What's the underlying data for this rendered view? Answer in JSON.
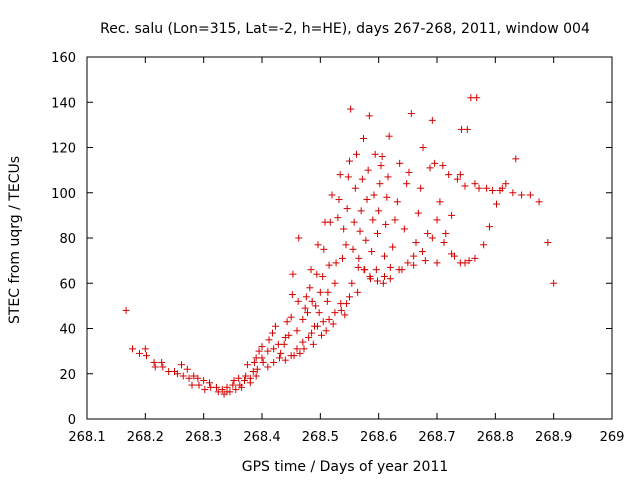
{
  "chart_data": {
    "type": "scatter",
    "title": "Rec. salu (Lon=315, Lat=-2, h=HE), days 267-268, 2011, window 004",
    "xlabel": "GPS time / Days of year 2011",
    "ylabel": "STEC from uqrg / TECUs",
    "xlim": [
      268.1,
      269.0
    ],
    "ylim": [
      0,
      160
    ],
    "xticks": [
      "268.1",
      "268.2",
      "268.3",
      "268.4",
      "268.5",
      "268.6",
      "268.7",
      "268.8",
      "268.9",
      "269"
    ],
    "yticks": [
      "0",
      "20",
      "40",
      "60",
      "80",
      "100",
      "120",
      "140",
      "160"
    ],
    "marker": "+",
    "color": "#d40000",
    "grid": false,
    "series": [
      {
        "name": "STEC",
        "points": [
          [
            268.167,
            48
          ],
          [
            268.178,
            31
          ],
          [
            268.19,
            29
          ],
          [
            268.2,
            31
          ],
          [
            268.202,
            28
          ],
          [
            268.215,
            25
          ],
          [
            268.217,
            23
          ],
          [
            268.228,
            25
          ],
          [
            268.23,
            23
          ],
          [
            268.24,
            21
          ],
          [
            268.25,
            21
          ],
          [
            268.255,
            20
          ],
          [
            268.262,
            24
          ],
          [
            268.265,
            19
          ],
          [
            268.272,
            22
          ],
          [
            268.275,
            18
          ],
          [
            268.28,
            15
          ],
          [
            268.283,
            19
          ],
          [
            268.29,
            18
          ],
          [
            268.292,
            15
          ],
          [
            268.3,
            17
          ],
          [
            268.302,
            13
          ],
          [
            268.31,
            16
          ],
          [
            268.312,
            14
          ],
          [
            268.322,
            14
          ],
          [
            268.325,
            12
          ],
          [
            268.332,
            13
          ],
          [
            268.335,
            11
          ],
          [
            268.34,
            14
          ],
          [
            268.345,
            12
          ],
          [
            268.35,
            15
          ],
          [
            268.352,
            17
          ],
          [
            268.36,
            18
          ],
          [
            268.362,
            15
          ],
          [
            268.37,
            17
          ],
          [
            268.372,
            19
          ],
          [
            268.375,
            24
          ],
          [
            268.38,
            18
          ],
          [
            268.385,
            21
          ],
          [
            268.387,
            25
          ],
          [
            268.39,
            27
          ],
          [
            268.392,
            22
          ],
          [
            268.395,
            30
          ],
          [
            268.4,
            32
          ],
          [
            268.4,
            27
          ],
          [
            268.402,
            25
          ],
          [
            268.41,
            30
          ],
          [
            268.412,
            35
          ],
          [
            268.418,
            38
          ],
          [
            268.42,
            31
          ],
          [
            268.423,
            41
          ],
          [
            268.428,
            33
          ],
          [
            268.432,
            29
          ],
          [
            268.438,
            33
          ],
          [
            268.44,
            36
          ],
          [
            268.443,
            43
          ],
          [
            268.446,
            37
          ],
          [
            268.45,
            45
          ],
          [
            268.452,
            55
          ],
          [
            268.453,
            64
          ],
          [
            268.455,
            28
          ],
          [
            268.46,
            39
          ],
          [
            268.462,
            52
          ],
          [
            268.463,
            80
          ],
          [
            268.465,
            29
          ],
          [
            268.47,
            44
          ],
          [
            268.472,
            31
          ],
          [
            268.474,
            49
          ],
          [
            268.476,
            54
          ],
          [
            268.478,
            47
          ],
          [
            268.48,
            36
          ],
          [
            268.482,
            58
          ],
          [
            268.484,
            66
          ],
          [
            268.486,
            52
          ],
          [
            268.488,
            33
          ],
          [
            268.49,
            41
          ],
          [
            268.492,
            50
          ],
          [
            268.494,
            64
          ],
          [
            268.496,
            77
          ],
          [
            268.498,
            47
          ],
          [
            268.5,
            56
          ],
          [
            268.502,
            37
          ],
          [
            268.504,
            63
          ],
          [
            268.506,
            75
          ],
          [
            268.508,
            87
          ],
          [
            268.51,
            39
          ],
          [
            268.512,
            52
          ],
          [
            268.513,
            56
          ],
          [
            268.515,
            68
          ],
          [
            268.517,
            87
          ],
          [
            268.52,
            99
          ],
          [
            268.522,
            42
          ],
          [
            268.525,
            60
          ],
          [
            268.527,
            69
          ],
          [
            268.53,
            89
          ],
          [
            268.532,
            97
          ],
          [
            268.534,
            108
          ],
          [
            268.536,
            48
          ],
          [
            268.538,
            71
          ],
          [
            268.54,
            84
          ],
          [
            268.542,
            46
          ],
          [
            268.544,
            77
          ],
          [
            268.546,
            93
          ],
          [
            268.548,
            107
          ],
          [
            268.55,
            114
          ],
          [
            268.552,
            137
          ],
          [
            268.554,
            60
          ],
          [
            268.556,
            75
          ],
          [
            268.558,
            87
          ],
          [
            268.56,
            102
          ],
          [
            268.562,
            117
          ],
          [
            268.564,
            56
          ],
          [
            268.566,
            71
          ],
          [
            268.568,
            83
          ],
          [
            268.57,
            92
          ],
          [
            268.572,
            106
          ],
          [
            268.574,
            124
          ],
          [
            268.576,
            66
          ],
          [
            268.578,
            79
          ],
          [
            268.58,
            97
          ],
          [
            268.582,
            110
          ],
          [
            268.584,
            134
          ],
          [
            268.586,
            62
          ],
          [
            268.588,
            74
          ],
          [
            268.59,
            88
          ],
          [
            268.592,
            99
          ],
          [
            268.594,
            117
          ],
          [
            268.596,
            66
          ],
          [
            268.598,
            82
          ],
          [
            268.6,
            92
          ],
          [
            268.602,
            104
          ],
          [
            268.604,
            112
          ],
          [
            268.606,
            116
          ],
          [
            268.608,
            60
          ],
          [
            268.61,
            72
          ],
          [
            268.612,
            86
          ],
          [
            268.614,
            98
          ],
          [
            268.616,
            107
          ],
          [
            268.618,
            125
          ],
          [
            268.62,
            62
          ],
          [
            268.624,
            76
          ],
          [
            268.628,
            88
          ],
          [
            268.632,
            96
          ],
          [
            268.636,
            113
          ],
          [
            268.64,
            66
          ],
          [
            268.644,
            84
          ],
          [
            268.648,
            104
          ],
          [
            268.652,
            109
          ],
          [
            268.656,
            135
          ],
          [
            268.66,
            68
          ],
          [
            268.664,
            78
          ],
          [
            268.668,
            91
          ],
          [
            268.672,
            102
          ],
          [
            268.676,
            120
          ],
          [
            268.68,
            70
          ],
          [
            268.684,
            82
          ],
          [
            268.688,
            111
          ],
          [
            268.692,
            132
          ],
          [
            268.696,
            113
          ],
          [
            268.7,
            88
          ],
          [
            268.705,
            96
          ],
          [
            268.71,
            112
          ],
          [
            268.715,
            82
          ],
          [
            268.72,
            108
          ],
          [
            268.725,
            90
          ],
          [
            268.73,
            72
          ],
          [
            268.735,
            106
          ],
          [
            268.74,
            108
          ],
          [
            268.742,
            128
          ],
          [
            268.748,
            103
          ],
          [
            268.752,
            128
          ],
          [
            268.755,
            70
          ],
          [
            268.758,
            142
          ],
          [
            268.765,
            104
          ],
          [
            268.768,
            142
          ],
          [
            268.772,
            102
          ],
          [
            268.78,
            77
          ],
          [
            268.785,
            102
          ],
          [
            268.79,
            85
          ],
          [
            268.795,
            101
          ],
          [
            268.802,
            95
          ],
          [
            268.808,
            101
          ],
          [
            268.812,
            102
          ],
          [
            268.818,
            104
          ],
          [
            268.83,
            100
          ],
          [
            268.835,
            115
          ],
          [
            268.845,
            99
          ],
          [
            268.86,
            99
          ],
          [
            268.875,
            96
          ],
          [
            268.89,
            78
          ],
          [
            268.9,
            60
          ],
          [
            268.765,
            71
          ],
          [
            268.748,
            69
          ],
          [
            268.74,
            69
          ],
          [
            268.725,
            73
          ],
          [
            268.712,
            78
          ],
          [
            268.7,
            69
          ],
          [
            268.692,
            80
          ],
          [
            268.675,
            74
          ],
          [
            268.66,
            72
          ],
          [
            268.65,
            69
          ],
          [
            268.635,
            66
          ],
          [
            268.62,
            67
          ],
          [
            268.61,
            63
          ],
          [
            268.598,
            61
          ],
          [
            268.585,
            63
          ],
          [
            268.575,
            66
          ],
          [
            268.565,
            67
          ],
          [
            268.55,
            54
          ],
          [
            268.545,
            51
          ],
          [
            268.535,
            51
          ],
          [
            268.525,
            47
          ],
          [
            268.515,
            44
          ],
          [
            268.505,
            43
          ],
          [
            268.495,
            41
          ],
          [
            268.485,
            38
          ],
          [
            268.47,
            34
          ],
          [
            268.46,
            31
          ],
          [
            268.45,
            28
          ],
          [
            268.44,
            26
          ],
          [
            268.43,
            27
          ],
          [
            268.42,
            25
          ],
          [
            268.41,
            23
          ],
          [
            268.39,
            19
          ],
          [
            268.38,
            16
          ],
          [
            268.365,
            14
          ],
          [
            268.355,
            13
          ],
          [
            268.34,
            12
          ]
        ]
      }
    ]
  }
}
